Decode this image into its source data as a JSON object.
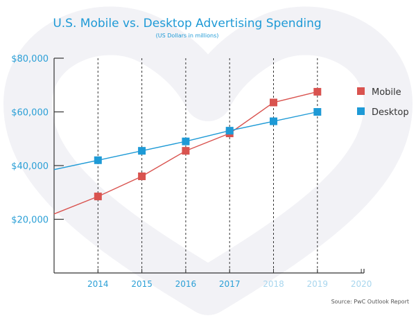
{
  "chart_data": {
    "type": "line",
    "title": "U.S. Mobile vs. Desktop Advertising Spending",
    "subtitle": "(US Dollars in millions)",
    "source": "Source: PwC Outlook Report",
    "x_ticks": [
      2014,
      2015,
      2016,
      2017,
      2018,
      2019,
      2020
    ],
    "y_ticks": [
      20000,
      40000,
      60000,
      80000
    ],
    "y_tick_labels": [
      "$20,000",
      "$40,000",
      "$60,000",
      "$80,000"
    ],
    "xlim": [
      2013,
      2020.1
    ],
    "ylim": [
      0,
      80000
    ],
    "grid": "vertical dashed lines at 2014-2019",
    "legend_position": "right",
    "series": [
      {
        "name": "Mobile",
        "color": "#d9534f",
        "x": [
          2013,
          2014,
          2015,
          2016,
          2017,
          2018,
          2019
        ],
        "y": [
          22000,
          28500,
          36000,
          45500,
          52000,
          63500,
          67500
        ],
        "markers": [
          false,
          true,
          true,
          true,
          true,
          true,
          true
        ]
      },
      {
        "name": "Desktop",
        "color": "#1e9ad6",
        "x": [
          2013,
          2014,
          2015,
          2016,
          2017,
          2018,
          2019
        ],
        "y": [
          38500,
          42000,
          45500,
          49000,
          53000,
          56500,
          60000
        ],
        "markers": [
          false,
          true,
          true,
          true,
          true,
          true,
          true
        ]
      }
    ],
    "colors": {
      "title": "#1e9ad6",
      "axis": "#333333",
      "tick_label": "#2a9fd6",
      "faded_tick_label": "#a8d6ee",
      "grid": "#333333",
      "watermark": "#f2f2f6"
    }
  }
}
